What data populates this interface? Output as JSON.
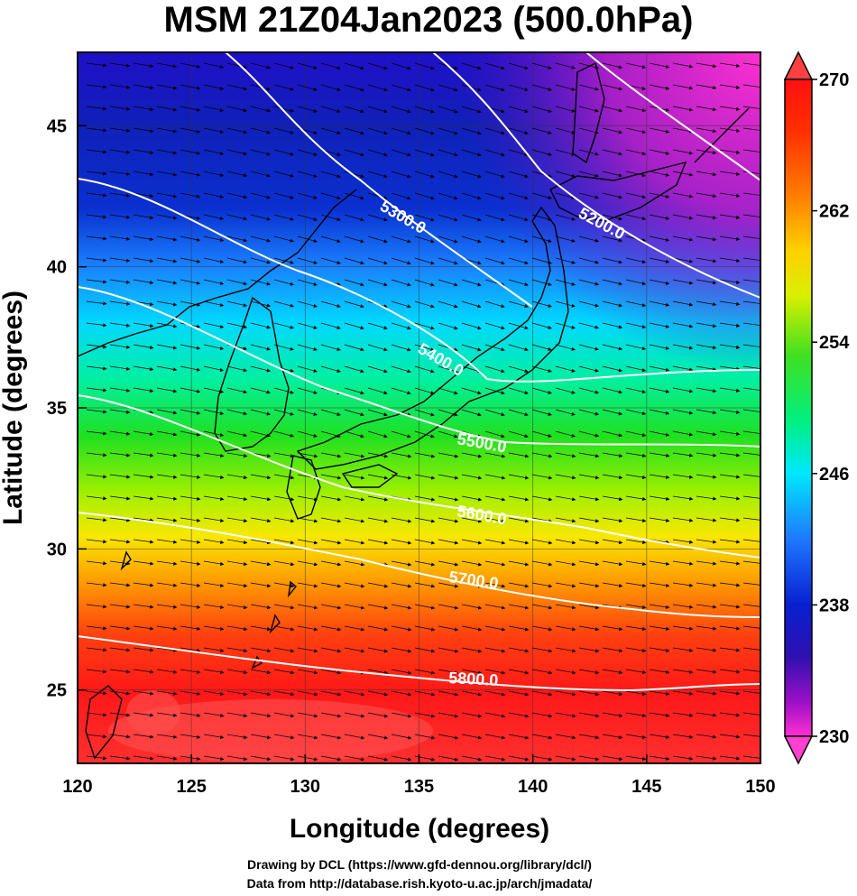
{
  "title": "MSM 21Z04Jan2023 (500.0hPa)",
  "axes": {
    "xlabel": "Longitude (degrees)",
    "ylabel": "Latitude  (degrees)",
    "xticks": [
      "120",
      "125",
      "130",
      "135",
      "140",
      "145",
      "150"
    ],
    "yticks": [
      "25",
      "30",
      "35",
      "40",
      "45"
    ],
    "xlim": [
      120,
      150
    ],
    "ylim": [
      22.4,
      47.6
    ]
  },
  "colorbar": {
    "ticks": [
      "270",
      "262",
      "254",
      "246",
      "238",
      "230"
    ],
    "range": [
      230,
      270
    ],
    "colors": [
      "#ff30d0",
      "#a010c8",
      "#3010b0",
      "#1030e0",
      "#1e90ff",
      "#00e8ff",
      "#00ff90",
      "#20e020",
      "#a0f000",
      "#f8f000",
      "#ffa000",
      "#ff5000",
      "#ff1010"
    ]
  },
  "contours": {
    "labels": [
      "5200.0",
      "5300.0",
      "5400.0",
      "5500.0",
      "5600.0",
      "5700.0",
      "5800.0"
    ]
  },
  "wind": "vector-arrows",
  "credits": {
    "line1": "Drawing by DCL (https://www.gfd-dennou.org/library/dcl/)",
    "line2": "Data from http://database.rish.kyoto-u.ac.jp/arch/jmadata/"
  }
}
